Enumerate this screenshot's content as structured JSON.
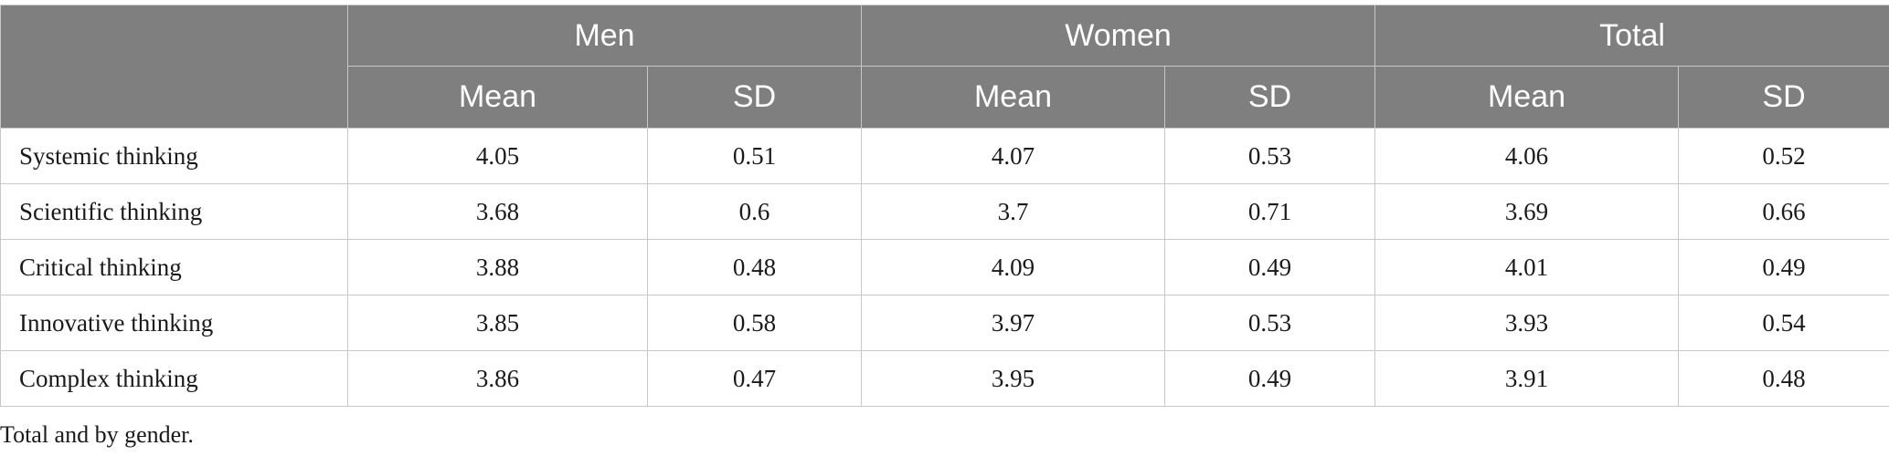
{
  "table": {
    "groups": [
      "Men",
      "Women",
      "Total"
    ],
    "subheaders": [
      "Mean",
      "SD",
      "Mean",
      "SD",
      "Mean",
      "SD"
    ],
    "rows": [
      {
        "label": "Systemic thinking",
        "values": [
          "4.05",
          "0.51",
          "4.07",
          "0.53",
          "4.06",
          "0.52"
        ]
      },
      {
        "label": "Scientific thinking",
        "values": [
          "3.68",
          "0.6",
          "3.7",
          "0.71",
          "3.69",
          "0.66"
        ]
      },
      {
        "label": "Critical thinking",
        "values": [
          "3.88",
          "0.48",
          "4.09",
          "0.49",
          "4.01",
          "0.49"
        ]
      },
      {
        "label": "Innovative thinking",
        "values": [
          "3.85",
          "0.58",
          "3.97",
          "0.53",
          "3.93",
          "0.54"
        ]
      },
      {
        "label": "Complex thinking",
        "values": [
          "3.86",
          "0.47",
          "3.95",
          "0.49",
          "3.91",
          "0.48"
        ]
      }
    ]
  },
  "caption": "Total and by gender.",
  "colors": {
    "header_background": "#7f7f7f",
    "header_text": "#ffffff",
    "grid_lines": "#c8c8c8"
  }
}
